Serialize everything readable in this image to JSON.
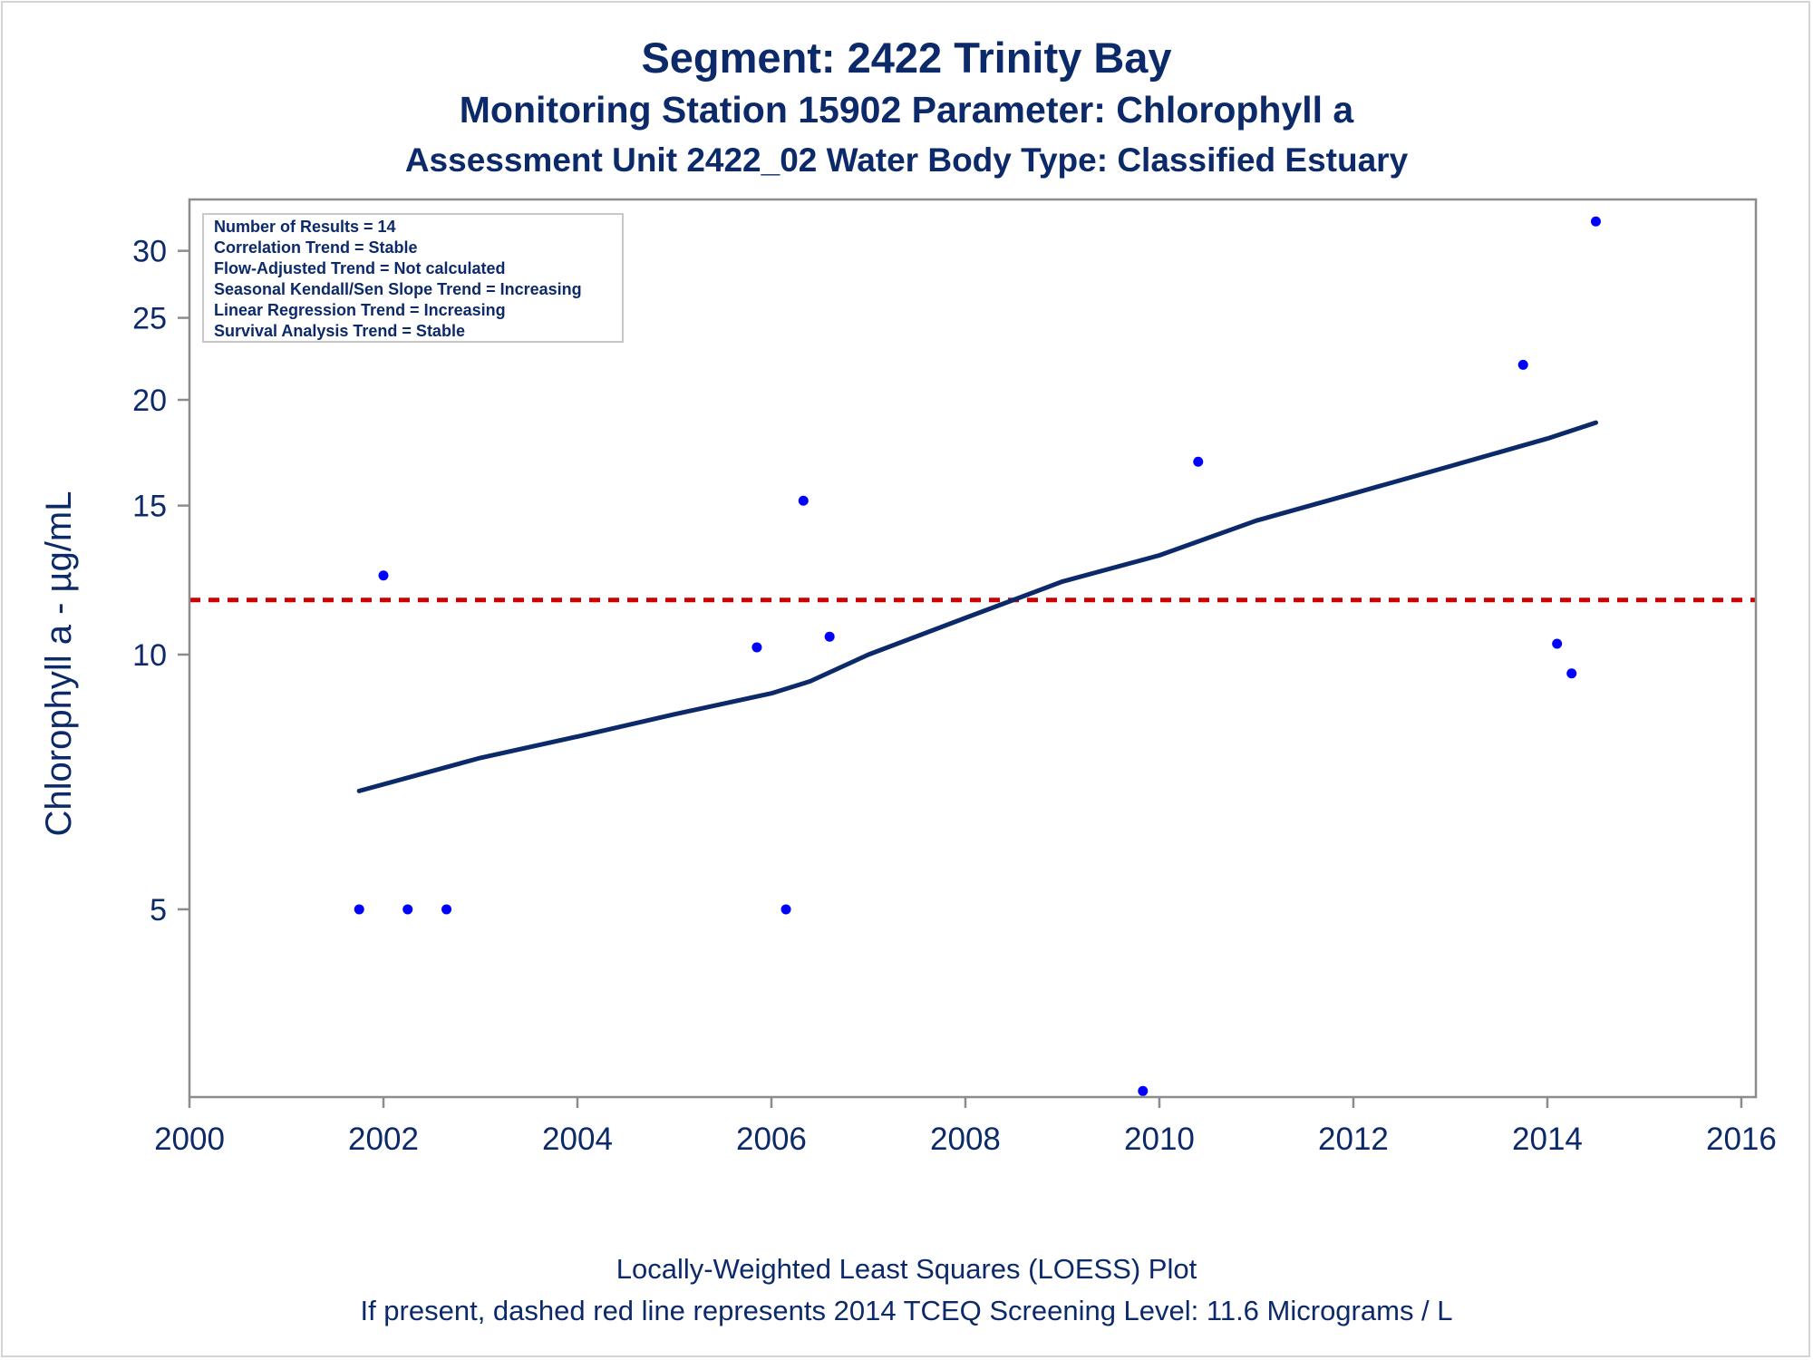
{
  "titles": {
    "line1": "Segment: 2422  Trinity Bay",
    "line2": "Monitoring Station 15902 Parameter: Chlorophyll a",
    "line3": "Assessment Unit 2422_02   Water Body Type: Classified Estuary"
  },
  "footer": {
    "line1": "Locally-Weighted Least Squares (LOESS) Plot",
    "line2": "If present, dashed red line represents 2014 TCEQ Screening Level: 11.6 Micrograms / L"
  },
  "info_box": [
    "Number of Results = 14",
    "Correlation Trend = Stable",
    "Flow-Adjusted Trend = Not calculated",
    "Seasonal Kendall/Sen Slope Trend = Increasing",
    "Linear Regression Trend = Increasing",
    "Survival Analysis Trend = Stable"
  ],
  "colors": {
    "points": "#0000ff",
    "trend": "#0c2a6a",
    "screening": "#cc0000",
    "axis": "#8c8c8c",
    "text": "#0c2a6a"
  },
  "chart_data": {
    "type": "scatter",
    "ylabel": "Chlorophyll a -  µg/mL",
    "xlabel": "",
    "y_scale": "log",
    "xlim": [
      2000,
      2016.15
    ],
    "ylim": [
      3.0,
      34.5
    ],
    "x_ticks": [
      2000,
      2002,
      2004,
      2006,
      2008,
      2010,
      2012,
      2014,
      2016
    ],
    "y_ticks": [
      5,
      10,
      15,
      20,
      25,
      30
    ],
    "points": [
      {
        "x": 2001.75,
        "y": 5.0
      },
      {
        "x": 2002.0,
        "y": 12.4
      },
      {
        "x": 2002.25,
        "y": 5.0
      },
      {
        "x": 2002.65,
        "y": 5.0
      },
      {
        "x": 2005.85,
        "y": 10.2
      },
      {
        "x": 2006.15,
        "y": 5.0
      },
      {
        "x": 2006.33,
        "y": 15.2
      },
      {
        "x": 2006.6,
        "y": 10.5
      },
      {
        "x": 2009.83,
        "y": 3.05
      },
      {
        "x": 2010.4,
        "y": 16.9
      },
      {
        "x": 2013.75,
        "y": 22.0
      },
      {
        "x": 2014.1,
        "y": 10.3
      },
      {
        "x": 2014.25,
        "y": 9.5
      },
      {
        "x": 2014.5,
        "y": 32.5
      }
    ],
    "loess": [
      {
        "x": 2001.75,
        "y": 6.9
      },
      {
        "x": 2003.0,
        "y": 7.55
      },
      {
        "x": 2004.0,
        "y": 8.0
      },
      {
        "x": 2005.0,
        "y": 8.5
      },
      {
        "x": 2006.0,
        "y": 9.0
      },
      {
        "x": 2006.4,
        "y": 9.3
      },
      {
        "x": 2007.0,
        "y": 10.0
      },
      {
        "x": 2008.0,
        "y": 11.05
      },
      {
        "x": 2009.0,
        "y": 12.2
      },
      {
        "x": 2010.0,
        "y": 13.1
      },
      {
        "x": 2011.0,
        "y": 14.4
      },
      {
        "x": 2012.0,
        "y": 15.5
      },
      {
        "x": 2013.0,
        "y": 16.7
      },
      {
        "x": 2014.0,
        "y": 18.0
      },
      {
        "x": 2014.5,
        "y": 18.8
      }
    ],
    "screening_level": 11.6,
    "grid": false,
    "legend": "top-left"
  }
}
